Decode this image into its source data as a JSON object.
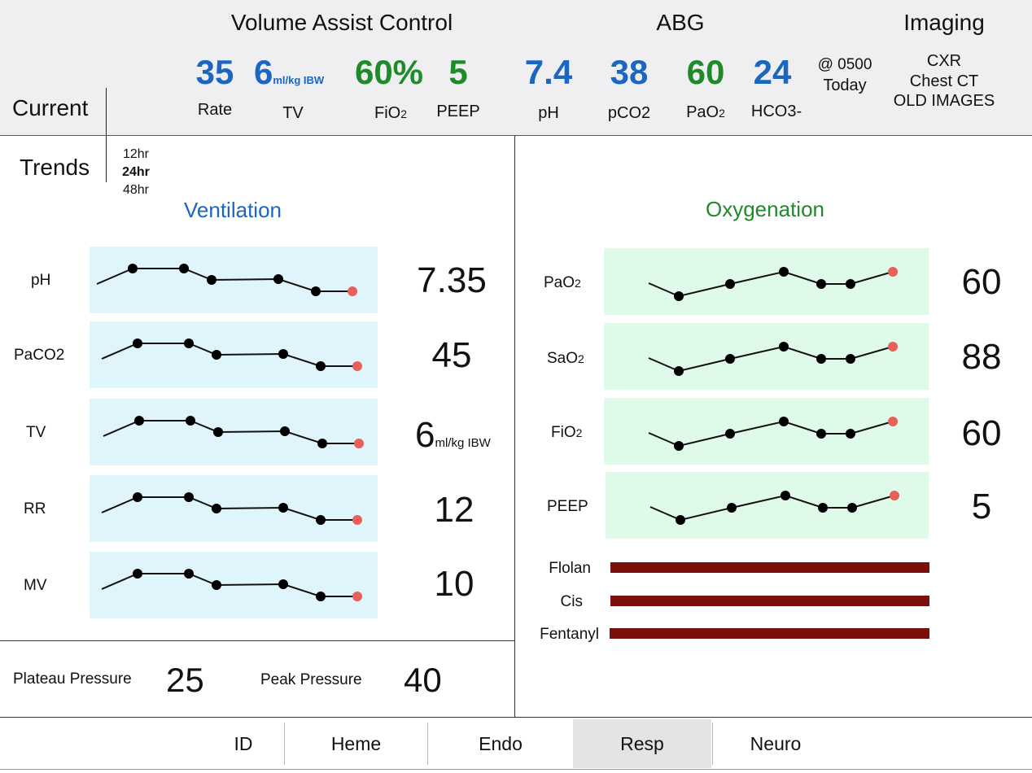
{
  "header": {
    "vent_mode": "Volume Assist Control",
    "abg_title": "ABG",
    "imaging_title": "Imaging",
    "current_label": "Current",
    "vent": {
      "rate": {
        "value": "35",
        "label": "Rate"
      },
      "tv": {
        "value": "6",
        "unit": "ml/kg IBW",
        "label": "TV"
      },
      "fio2": {
        "value": "60%",
        "label_main": "FiO",
        "label_sub": "2"
      },
      "peep": {
        "value": "5",
        "label": "PEEP"
      }
    },
    "abg": {
      "ph": {
        "value": "7.4",
        "label": "pH"
      },
      "pco2": {
        "value": "38",
        "label": "pCO2"
      },
      "pao2": {
        "value": "60",
        "label_main": "PaO",
        "label_sub": "2"
      },
      "hco3": {
        "value": "24",
        "label": "HCO3-"
      },
      "time": "@ 0500",
      "day": "Today"
    },
    "imaging": {
      "cxr": "CXR",
      "ct": "Chest CT",
      "old": "OLD IMAGES"
    }
  },
  "trends": {
    "label": "Trends",
    "ranges": [
      "12hr",
      "24hr",
      "48hr"
    ],
    "selected": "24hr"
  },
  "ventilation": {
    "title": "Ventilation",
    "rows": [
      {
        "label": "pH",
        "value": "7.35"
      },
      {
        "label": "PaCO2",
        "value": "45"
      },
      {
        "label": "TV",
        "value": "6",
        "unit": "ml/kg IBW"
      },
      {
        "label": "RR",
        "value": "12"
      },
      {
        "label": "MV",
        "value": "10"
      }
    ],
    "plateau_label": "Plateau Pressure",
    "plateau_value": "25",
    "peak_label": "Peak Pressure",
    "peak_value": "40"
  },
  "oxygenation": {
    "title": "Oxygenation",
    "rows": [
      {
        "label_main": "PaO",
        "label_sub": "2",
        "value": "60"
      },
      {
        "label_main": "SaO",
        "label_sub": "2",
        "value": "88"
      },
      {
        "label_main": "FiO",
        "label_sub": "2",
        "value": "60"
      },
      {
        "label_main": "PEEP",
        "label_sub": "",
        "value": "5"
      }
    ],
    "meds": [
      "Flolan",
      "Cis",
      "Fentanyl"
    ]
  },
  "tabs": [
    "ID",
    "Heme",
    "Endo",
    "Resp",
    "Neuro"
  ],
  "active_tab": "Resp",
  "colors": {
    "blue": "#1a66c0",
    "green": "#1f8a2a",
    "vent_bg": "#e0f5fb",
    "oxy_bg": "#e0faea",
    "latest_point": "#e8605a",
    "med_bar": "#7d0f0a"
  }
}
